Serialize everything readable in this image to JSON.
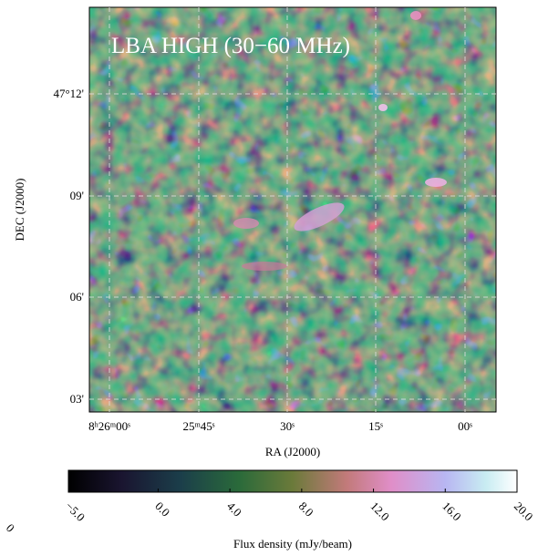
{
  "title": "LBA HIGH (30−60 MHz)",
  "x_axis": {
    "label": "RA (J2000)",
    "ticks": [
      "8ʰ26ᵐ00ˢ",
      "25ᵐ45ˢ",
      "30ˢ",
      "15ˢ",
      "00ˢ"
    ]
  },
  "y_axis": {
    "label": "DEC (J2000)",
    "ticks": [
      "47°12'",
      "09'",
      "06'",
      "03'"
    ]
  },
  "colorbar": {
    "label": "Flux density (mJy/beam)",
    "lim": [
      -5,
      20
    ],
    "ticks": [
      {
        "value": -5,
        "label": "−5.0"
      },
      {
        "value": 0,
        "label": "0.0"
      },
      {
        "value": 4,
        "label": "4.0"
      },
      {
        "value": 8,
        "label": "8.0"
      },
      {
        "value": 12,
        "label": "12.0"
      },
      {
        "value": 16,
        "label": "16.0"
      },
      {
        "value": 20,
        "label": "20.0"
      }
    ]
  },
  "stray_label": "0"
}
